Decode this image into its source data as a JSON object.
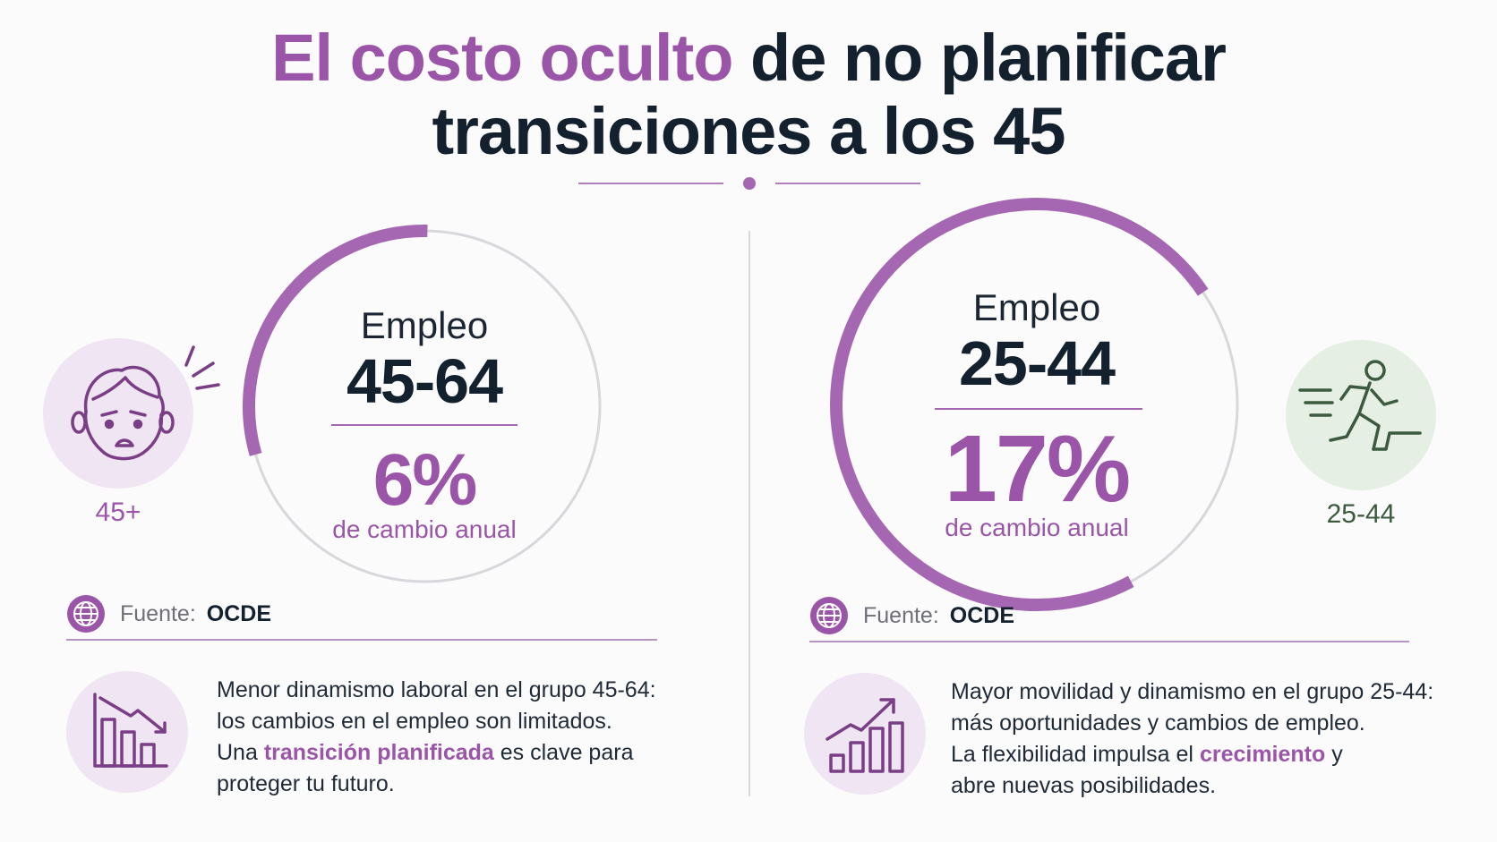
{
  "title": {
    "highlight": "El costo oculto",
    "rest_line1": " de no planificar",
    "line2": "transiciones a los 45"
  },
  "colors": {
    "accent": "#9b55a8",
    "dark": "#13202e",
    "green": "#3c5a3e",
    "green_bg": "#e6efe4",
    "purple_bg": "#f0e5f2"
  },
  "left": {
    "icon": "worried-face-icon",
    "icon_label": "45+",
    "ring_label": "Empleo",
    "ring_range": "45-64",
    "percent": "6%",
    "percent_value": 6,
    "percent_sub": "de cambio anual",
    "source_label": "Fuente:",
    "source_value": "OCDE",
    "desc_icon": "declining-bar-chart-icon",
    "desc_line1": "Menor dinamismo laboral en el grupo 45-64:",
    "desc_line2": "los cambios en el empleo son limitados.",
    "desc_line3_pre": "Una ",
    "desc_line3_em": "transición planificada",
    "desc_line3_post": " es clave para",
    "desc_line4": "proteger tu futuro."
  },
  "right": {
    "icon": "running-person-icon",
    "icon_label": "25-44",
    "ring_label": "Empleo",
    "ring_range": "25-44",
    "percent": "17%",
    "percent_value": 17,
    "percent_sub": "de cambio anual",
    "source_label": "Fuente:",
    "source_value": "OCDE",
    "desc_icon": "growing-bar-chart-icon",
    "desc_line1": "Mayor movilidad y dinamismo en el grupo 25-44:",
    "desc_line2": "más oportunidades y cambios de empleo.",
    "desc_line3_pre": "La flexibilidad impulsa el ",
    "desc_line3_em": "crecimiento",
    "desc_line3_post": " y",
    "desc_line4": "abre nuevas posibilidades."
  }
}
